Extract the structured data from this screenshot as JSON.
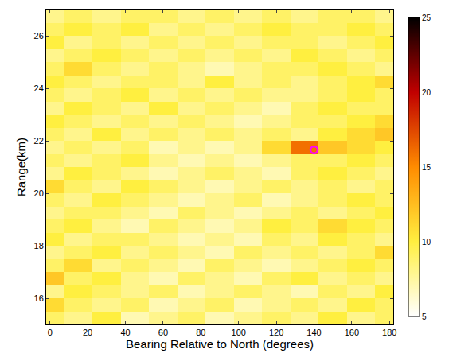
{
  "chart_data": {
    "type": "heatmap",
    "x_label": "Bearing Relative to North (degrees)",
    "y_label": "Range(km)",
    "x": [
      0,
      15,
      30,
      45,
      60,
      75,
      90,
      105,
      120,
      135,
      150,
      165,
      180
    ],
    "y": [
      15.25,
      15.75,
      16.25,
      16.75,
      17.25,
      17.75,
      18.25,
      18.75,
      19.25,
      19.75,
      20.25,
      20.75,
      21.25,
      21.75,
      22.25,
      22.75,
      23.25,
      23.75,
      24.25,
      24.75,
      25.25,
      25.75,
      26.25,
      26.75
    ],
    "z": [
      [
        9,
        8,
        10,
        7,
        8,
        9,
        7,
        8,
        9,
        8,
        10,
        8,
        9
      ],
      [
        11,
        9,
        8,
        9,
        7,
        8,
        9,
        7,
        8,
        9,
        8,
        10,
        9
      ],
      [
        8,
        10,
        9,
        8,
        9,
        7,
        8,
        9,
        8,
        7,
        9,
        8,
        10
      ],
      [
        12,
        9,
        10,
        8,
        7,
        9,
        8,
        7,
        9,
        10,
        8,
        9,
        8
      ],
      [
        9,
        11,
        8,
        9,
        8,
        7,
        9,
        8,
        7,
        8,
        9,
        10,
        9
      ],
      [
        8,
        9,
        10,
        8,
        9,
        8,
        7,
        9,
        8,
        9,
        8,
        9,
        11
      ],
      [
        10,
        8,
        9,
        9,
        8,
        7,
        8,
        7,
        9,
        8,
        10,
        9,
        8
      ],
      [
        9,
        10,
        8,
        7,
        9,
        8,
        7,
        8,
        10,
        9,
        11,
        10,
        9
      ],
      [
        8,
        9,
        9,
        8,
        7,
        9,
        8,
        7,
        8,
        9,
        8,
        9,
        10
      ],
      [
        9,
        8,
        10,
        9,
        8,
        7,
        8,
        9,
        7,
        8,
        9,
        10,
        9
      ],
      [
        11,
        9,
        8,
        10,
        9,
        8,
        7,
        8,
        9,
        8,
        9,
        8,
        9
      ],
      [
        8,
        10,
        9,
        8,
        7,
        8,
        9,
        8,
        7,
        9,
        10,
        9,
        8
      ],
      [
        9,
        8,
        9,
        10,
        8,
        7,
        8,
        7,
        8,
        9,
        9,
        10,
        9
      ],
      [
        8,
        9,
        8,
        9,
        7,
        8,
        7,
        8,
        11,
        16,
        12,
        11,
        10
      ],
      [
        9,
        8,
        10,
        8,
        9,
        8,
        9,
        8,
        9,
        8,
        10,
        11,
        12
      ],
      [
        10,
        9,
        8,
        9,
        8,
        9,
        8,
        7,
        8,
        9,
        9,
        10,
        11
      ],
      [
        8,
        10,
        9,
        8,
        10,
        8,
        9,
        8,
        7,
        9,
        10,
        9,
        9
      ],
      [
        9,
        8,
        9,
        10,
        8,
        9,
        8,
        9,
        8,
        8,
        9,
        10,
        9
      ],
      [
        10,
        9,
        8,
        9,
        9,
        8,
        10,
        8,
        9,
        8,
        9,
        10,
        11
      ],
      [
        9,
        11,
        9,
        8,
        9,
        8,
        7,
        8,
        9,
        9,
        10,
        9,
        8
      ],
      [
        8,
        9,
        10,
        9,
        8,
        9,
        8,
        9,
        8,
        10,
        9,
        8,
        9
      ],
      [
        10,
        8,
        9,
        8,
        9,
        8,
        9,
        8,
        9,
        9,
        8,
        9,
        10
      ],
      [
        9,
        10,
        9,
        10,
        8,
        9,
        8,
        9,
        10,
        9,
        9,
        10,
        9
      ],
      [
        8,
        9,
        8,
        9,
        9,
        8,
        9,
        8,
        9,
        8,
        9,
        9,
        8
      ]
    ],
    "xlim": [
      -2,
      182
    ],
    "ylim": [
      15,
      27
    ],
    "xticks": [
      0,
      20,
      40,
      60,
      80,
      100,
      120,
      140,
      160,
      180
    ],
    "yticks": [
      16,
      18,
      20,
      22,
      24,
      26
    ],
    "colorbar_range": [
      5,
      25
    ],
    "colorbar_ticks": [
      5,
      10,
      15,
      20,
      25
    ],
    "markers": [
      {
        "x": 140,
        "y": 21.65,
        "color": "#ff00ff",
        "marker": "circle-open"
      }
    ]
  }
}
